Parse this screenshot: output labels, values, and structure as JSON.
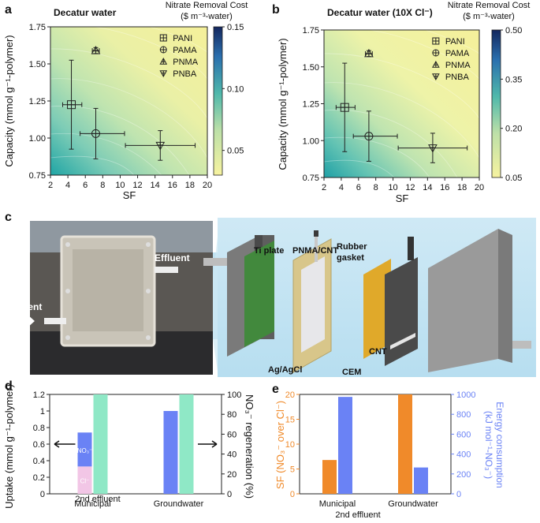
{
  "chart_data": [
    {
      "panel": "a",
      "type": "scatter",
      "title": "Decatur water",
      "colorbar_title": [
        "Nitrate Removal Cost",
        "($ m⁻³-water)"
      ],
      "colorbar_ticks": [
        0.05,
        0.1,
        0.15
      ],
      "colorbar_range": [
        0.03,
        0.15
      ],
      "xlabel": "SF",
      "ylabel": "Capacity (mmol g⁻¹-polymer)",
      "xlim": [
        2,
        20
      ],
      "ylim": [
        0.75,
        1.75
      ],
      "xticks": [
        2,
        4,
        6,
        8,
        10,
        12,
        14,
        16,
        18,
        20
      ],
      "yticks": [
        0.75,
        1.0,
        1.25,
        1.5,
        1.75
      ],
      "series": [
        {
          "name": "PANI",
          "marker": "square-plus",
          "x": 4.4,
          "y": 1.225,
          "xerr": [
            1.0,
            1.2
          ],
          "yerr": [
            0.3,
            0.3
          ]
        },
        {
          "name": "PAMA",
          "marker": "circle-plus",
          "x": 7.2,
          "y": 1.03,
          "xerr": [
            1.8,
            3.3
          ],
          "yerr": [
            0.17,
            0.17
          ]
        },
        {
          "name": "PNMA",
          "marker": "triangle-up",
          "x": 7.2,
          "y": 1.59,
          "xerr": [
            0.4,
            0.4
          ],
          "yerr": [
            0.02,
            0.02
          ]
        },
        {
          "name": "PNBA",
          "marker": "triangle-down",
          "x": 14.6,
          "y": 0.95,
          "xerr": [
            4.0,
            4.0
          ],
          "yerr": [
            0.1,
            0.1
          ]
        }
      ]
    },
    {
      "panel": "b",
      "type": "scatter",
      "title": "Decatur water (10X Cl⁻)",
      "colorbar_title": [
        "Nitrate Removal Cost",
        "($ m⁻³-water)"
      ],
      "colorbar_ticks": [
        0.05,
        0.2,
        0.35,
        0.5
      ],
      "colorbar_range": [
        0.05,
        0.5
      ],
      "xlabel": "SF",
      "ylabel": "Capacity (mmol g⁻¹-polymer)",
      "xlim": [
        2,
        20
      ],
      "ylim": [
        0.75,
        1.75
      ],
      "xticks": [
        2,
        4,
        6,
        8,
        10,
        12,
        14,
        16,
        18,
        20
      ],
      "yticks": [
        0.75,
        1.0,
        1.25,
        1.5,
        1.75
      ],
      "series": [
        {
          "name": "PANI",
          "marker": "square-plus",
          "x": 4.4,
          "y": 1.225,
          "xerr": [
            1.0,
            1.2
          ],
          "yerr": [
            0.3,
            0.3
          ]
        },
        {
          "name": "PAMA",
          "marker": "circle-plus",
          "x": 7.2,
          "y": 1.03,
          "xerr": [
            1.8,
            3.3
          ],
          "yerr": [
            0.17,
            0.17
          ]
        },
        {
          "name": "PNMA",
          "marker": "triangle-up",
          "x": 7.2,
          "y": 1.59,
          "xerr": [
            0.4,
            0.4
          ],
          "yerr": [
            0.02,
            0.02
          ]
        },
        {
          "name": "PNBA",
          "marker": "triangle-down",
          "x": 14.6,
          "y": 0.95,
          "xerr": [
            4.0,
            4.0
          ],
          "yerr": [
            0.1,
            0.1
          ]
        }
      ]
    },
    {
      "panel": "d",
      "type": "bar",
      "categories": [
        "Municipal",
        "Groundwater"
      ],
      "category_sub": "2nd effluent",
      "ylabel_left": "Uptake (mmol g⁻¹-polymer)",
      "ylabel_right": "NO₃⁻ regeneration (%)",
      "ylim_left": [
        0,
        1.2
      ],
      "ylim_right": [
        0,
        100
      ],
      "yticks_left": [
        0,
        0.2,
        0.4,
        0.6,
        0.8,
        1,
        1.2
      ],
      "yticks_right": [
        0,
        20,
        40,
        60,
        80,
        100
      ],
      "uptake_stacked": [
        {
          "name": "Cl⁻",
          "color": "#f2c6e6",
          "values": [
            0.33,
            0
          ]
        },
        {
          "name": "NO₃⁻",
          "color": "#6a82f5",
          "values": [
            0.41,
            1.0
          ]
        }
      ],
      "regeneration": {
        "color": "#8fe8c6",
        "values": [
          100,
          100
        ]
      }
    },
    {
      "panel": "e",
      "type": "bar",
      "categories": [
        "Municipal",
        "Groundwater"
      ],
      "category_sub": "2nd effluent",
      "ylabel_left": "SF (NO₃⁻ over Cl⁻)",
      "ylabel_right": "Energy consumption (kJ mol⁻¹-NO₃⁻)",
      "ylim_left": [
        0,
        20
      ],
      "ylim_right": [
        0,
        1000
      ],
      "yticks_left": [
        0,
        5,
        10,
        15,
        20
      ],
      "yticks_right": [
        0,
        200,
        400,
        600,
        800,
        1000
      ],
      "sf": {
        "color": "#f08a2a",
        "values": [
          6.8,
          20
        ]
      },
      "energy": {
        "color": "#6a82f5",
        "values": [
          975,
          265
        ]
      }
    }
  ],
  "panel_c": {
    "photo_labels": {
      "effluent": "Effluent",
      "influent": "Influent"
    },
    "cell_labels": [
      "Ti plate",
      "PNMA/CNT",
      "Rubber gasket",
      "Ag/AgCl",
      "CEM",
      "CNT"
    ]
  },
  "panel_letters": [
    "a",
    "b",
    "c",
    "d",
    "e"
  ],
  "colors": {
    "accent": "#f08a2a",
    "blue": "#6a82f5"
  }
}
